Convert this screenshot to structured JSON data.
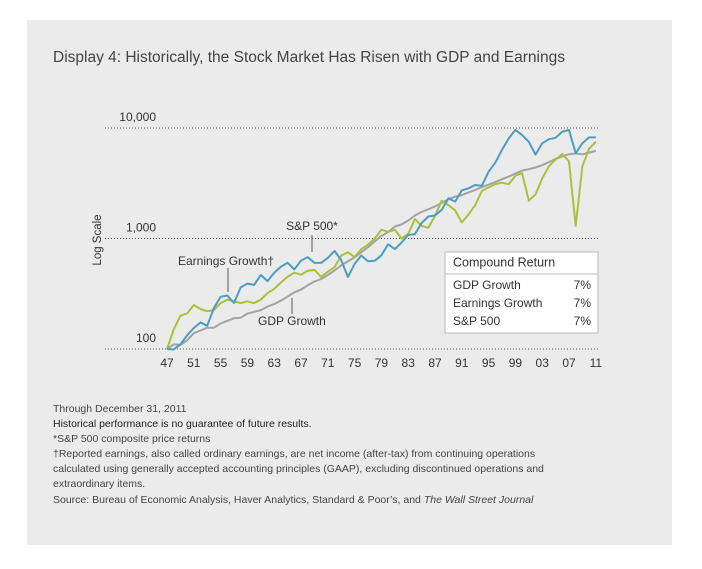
{
  "chart_data": {
    "type": "line",
    "title": "Display 4: Historically, the Stock Market Has Risen with GDP and Earnings",
    "y_label": "Log Scale",
    "y_scale": "log",
    "ylim": [
      100,
      10000
    ],
    "yticks": [
      100,
      {
        "value": 1000,
        "label": "1,000"
      },
      {
        "value": 10000,
        "label": "10,000"
      }
    ],
    "grid": true,
    "categories": [
      "47",
      null,
      null,
      null,
      "51",
      null,
      null,
      null,
      "55",
      null,
      null,
      null,
      "59",
      null,
      null,
      null,
      "63",
      null,
      null,
      null,
      "67",
      null,
      null,
      null,
      "71",
      null,
      null,
      null,
      "75",
      null,
      null,
      null,
      "79",
      null,
      null,
      null,
      "83",
      null,
      null,
      null,
      "87",
      null,
      null,
      null,
      "91",
      null,
      null,
      null,
      "95",
      null,
      null,
      null,
      "99",
      null,
      null,
      null,
      "03",
      null,
      null,
      null,
      "07",
      null,
      null,
      null,
      "11"
    ],
    "series": [
      {
        "name": "GDP Growth",
        "color": "#a3a3a3",
        "values": [
          100,
          110,
          109,
          120,
          139,
          147,
          156,
          156,
          170,
          180,
          190,
          192,
          209,
          217,
          225,
          242,
          255,
          274,
          298,
          326,
          345,
          377,
          408,
          430,
          467,
          513,
          572,
          620,
          676,
          751,
          834,
          943,
          1053,
          1145,
          1284,
          1338,
          1455,
          1616,
          1739,
          1836,
          1948,
          2101,
          2263,
          2392,
          2470,
          2616,
          2752,
          2924,
          3066,
          3240,
          3444,
          3636,
          3864,
          4114,
          4249,
          4391,
          4604,
          4910,
          5238,
          5542,
          5791,
          5888,
          5768,
          5986,
          6207
        ]
      },
      {
        "name": "Earnings Growth",
        "color": "#a9c23a",
        "values": [
          100,
          150,
          200,
          210,
          250,
          230,
          220,
          225,
          260,
          280,
          270,
          260,
          270,
          260,
          280,
          320,
          350,
          400,
          450,
          490,
          470,
          510,
          520,
          450,
          500,
          550,
          700,
          750,
          680,
          800,
          880,
          1000,
          1200,
          1150,
          1200,
          1000,
          1100,
          1500,
          1300,
          1250,
          1600,
          2200,
          2000,
          1800,
          1400,
          1650,
          2000,
          2700,
          2900,
          3100,
          3200,
          3100,
          3700,
          3900,
          2200,
          2500,
          3500,
          4500,
          5200,
          5800,
          5000,
          1300,
          4500,
          6500,
          7500
        ]
      },
      {
        "name": "S&P 500",
        "color": "#4d9dc2",
        "values": [
          100,
          99,
          110,
          133,
          155,
          174,
          162,
          235,
          297,
          305,
          261,
          361,
          391,
          380,
          468,
          412,
          490,
          554,
          604,
          525,
          631,
          679,
          602,
          602,
          667,
          772,
          638,
          448,
          589,
          702,
          622,
          628,
          705,
          887,
          801,
          919,
          1078,
          1093,
          1381,
          1583,
          1615,
          1815,
          2310,
          2158,
          2726,
          2848,
          3049,
          3002,
          4026,
          4841,
          6343,
          8034,
          9603,
          8629,
          7504,
          5750,
          7267,
          7921,
          8159,
          9270,
          9597,
          5904,
          7288,
          8220,
          8219
        ]
      }
    ],
    "annotations": [
      "S&P 500*",
      "Earnings Growth†",
      "GDP Growth"
    ],
    "compound_return": {
      "title": "Compound Return",
      "rows": [
        [
          "GDP Growth",
          "7%"
        ],
        [
          "Earnings Growth",
          "7%"
        ],
        [
          "S&P 500",
          "7%"
        ]
      ]
    },
    "notes": [
      "Through December 31, 2011",
      "Historical performance is no guarantee of future results.",
      "*S&P 500 composite price returns",
      "†Reported earnings, also called ordinary earnings, are net income (after-tax) from continuing operations",
      "calculated using generally accepted accounting principles (GAAP), excluding discontinued operations and",
      "extraordinary items."
    ],
    "source": "Source: Bureau of Economic Analysis, Haver Analytics, Standard & Poor’s, and ",
    "source_italic": "The Wall Street Journal"
  }
}
